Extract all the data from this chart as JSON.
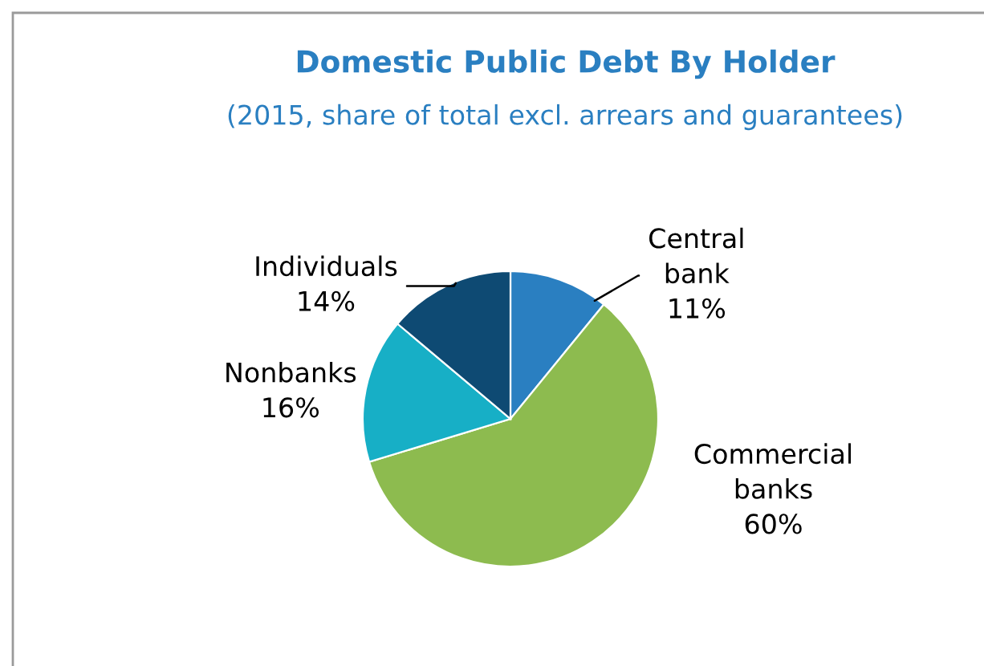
{
  "chart_data": {
    "type": "pie",
    "title": "Domestic Public Debt By Holder",
    "subtitle": "(2015, share of total excl. arrears and guarantees)",
    "categories": [
      "Central bank",
      "Commercial banks",
      "Nonbanks",
      "Individuals"
    ],
    "values": [
      11,
      60,
      16,
      14
    ],
    "colors": [
      "#2a7fc1",
      "#8dbb4f",
      "#17afc6",
      "#0e4a73"
    ],
    "value_labels": [
      "11%",
      "60%",
      "16%",
      "14%"
    ]
  }
}
